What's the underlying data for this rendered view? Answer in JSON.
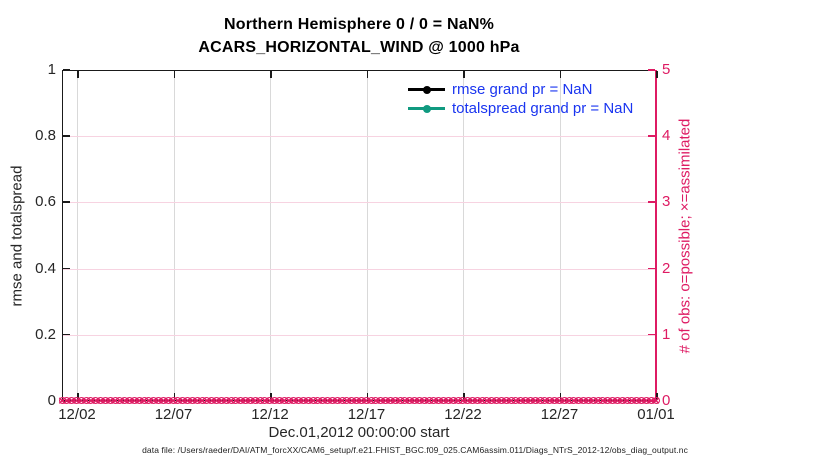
{
  "title": {
    "line1": "Northern Hemisphere 0 / 0 = NaN%",
    "line2": "ACARS_HORIZONTAL_WIND @ 1000 hPa"
  },
  "legend": {
    "text_color": "#1a35f0",
    "items": [
      {
        "label": "rmse grand pr = NaN",
        "color": "#000000"
      },
      {
        "label": "totalspread grand pr = NaN",
        "color": "#109a80"
      }
    ]
  },
  "axes": {
    "left": {
      "label": "rmse and totalspread",
      "ticks": [
        "0",
        "0.2",
        "0.4",
        "0.6",
        "0.8",
        "1"
      ],
      "color": "#262626"
    },
    "right": {
      "label": "# of obs: o=possible; ×=assimilated",
      "ticks": [
        "0",
        "1",
        "2",
        "3",
        "4",
        "5"
      ],
      "color": "#de1b63"
    },
    "x": {
      "label": "Dec.01,2012 00:00:00 start",
      "ticks": [
        "12/02",
        "12/07",
        "12/12",
        "12/17",
        "12/22",
        "12/27",
        "01/01"
      ]
    }
  },
  "footer": "data file: /Users/raeder/DAI/ATM_forcXX/CAM6_setup/f.e21.FHIST_BGC.f09_025.CAM6assim.011/Diags_NTrS_2012-12/obs_diag_output.nc",
  "colors": {
    "crimson": "#de1b63",
    "grid_pink": "#f7d3e1",
    "grid_gray": "#d9d9d9",
    "axis_black": "#1a1a1a"
  },
  "chart_data": {
    "type": "line",
    "title": "Northern Hemisphere 0 / 0 = NaN%",
    "subtitle": "ACARS_HORIZONTAL_WIND @ 1000 hPa",
    "xlabel": "Dec.01,2012 00:00:00 start",
    "x_tick_labels": [
      "12/02",
      "12/07",
      "12/12",
      "12/17",
      "12/22",
      "12/27",
      "01/01"
    ],
    "ylabel_left": "rmse and totalspread",
    "ylim_left": [
      0,
      1
    ],
    "y_ticks_left": [
      0,
      0.2,
      0.4,
      0.6,
      0.8,
      1
    ],
    "ylabel_right": "# of obs: o=possible; ×=assimilated",
    "ylim_right": [
      0,
      5
    ],
    "y_ticks_right": [
      0,
      1,
      2,
      3,
      4,
      5
    ],
    "grid": true,
    "legend_position": "inside-top-right",
    "series": [
      {
        "name": "rmse",
        "grand_pr": "NaN",
        "color": "#000000",
        "marker": "filled-circle",
        "values": "all NaN (no curve drawn)"
      },
      {
        "name": "totalspread",
        "grand_pr": "NaN",
        "color": "#109a80",
        "marker": "filled-circle",
        "values": "all NaN (no curve drawn)"
      }
    ],
    "obs_markers": {
      "possible_symbol": "o",
      "assimilated_symbol": "×",
      "value_right_axis": 0,
      "n_time_bins": 124,
      "color": "#de1b63",
      "note": "possible and assimilated counts are 0 for every time bin; markers form a dense band along y=0"
    }
  }
}
